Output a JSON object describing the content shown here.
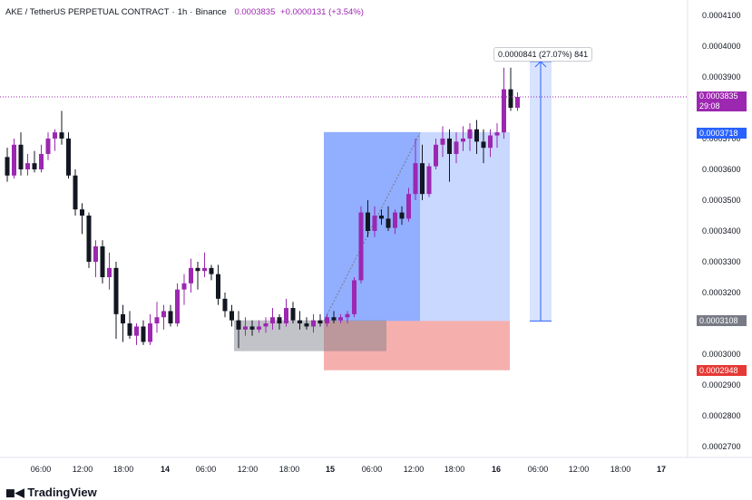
{
  "header": {
    "symbol": "AKE / TetherUS PERPETUAL CONTRACT",
    "interval": "1h",
    "exchange": "Binance",
    "last_price": "0.0003835",
    "change": "+0.0000131 (+3.54%)"
  },
  "price_axis": {
    "ticks": [
      "0.0004100",
      "0.0004000",
      "0.0003900",
      "0.0003800",
      "0.0003700",
      "0.0003600",
      "0.0003500",
      "0.0003400",
      "0.0003300",
      "0.0003200",
      "0.0003100",
      "0.0003000",
      "0.0002900",
      "0.0002800",
      "0.0002700"
    ]
  },
  "badges": {
    "last_price": "0.0003835",
    "countdown": "29:08",
    "take_profit": "0.0003718",
    "entry": "0.0003108",
    "stop_loss": "0.0002948",
    "last_color": "#9c27b0",
    "tp_color": "#2962ff",
    "entry_color": "#787b86",
    "sl_color": "#e53935"
  },
  "measure": {
    "label": "0.0000841 (27.07%) 841"
  },
  "time_axis": {
    "labels": [
      "06:00",
      "12:00",
      "18:00",
      "14",
      "06:00",
      "12:00",
      "18:00",
      "15",
      "06:00",
      "12:00",
      "18:00",
      "16",
      "06:00",
      "12:00",
      "18:00",
      "17"
    ]
  },
  "footer": {
    "logo": "TradingView"
  },
  "chart_data": {
    "type": "candlestick",
    "title": "AKE / TetherUS PERPETUAL CONTRACT · 1h · Binance",
    "y_range": [
      0.0002665,
      0.0004135
    ],
    "up_color": "#9c27b0",
    "down_color": "#131722",
    "candles": [
      {
        "o": 0.000364,
        "h": 0.000367,
        "l": 0.000356,
        "c": 0.000358
      },
      {
        "o": 0.000358,
        "h": 0.00037,
        "l": 0.000357,
        "c": 0.000368
      },
      {
        "o": 0.000368,
        "h": 0.000372,
        "l": 0.000358,
        "c": 0.00036
      },
      {
        "o": 0.00036,
        "h": 0.000365,
        "l": 0.000358,
        "c": 0.000362
      },
      {
        "o": 0.000362,
        "h": 0.000366,
        "l": 0.000359,
        "c": 0.00036
      },
      {
        "o": 0.00036,
        "h": 0.000368,
        "l": 0.000359,
        "c": 0.000365
      },
      {
        "o": 0.000365,
        "h": 0.000372,
        "l": 0.000363,
        "c": 0.00037
      },
      {
        "o": 0.00037,
        "h": 0.000373,
        "l": 0.000366,
        "c": 0.000372
      },
      {
        "o": 0.000372,
        "h": 0.000379,
        "l": 0.000368,
        "c": 0.00037
      },
      {
        "o": 0.00037,
        "h": 0.000372,
        "l": 0.000357,
        "c": 0.000358
      },
      {
        "o": 0.000358,
        "h": 0.00036,
        "l": 0.000345,
        "c": 0.000347
      },
      {
        "o": 0.000347,
        "h": 0.000349,
        "l": 0.000339,
        "c": 0.000345
      },
      {
        "o": 0.000345,
        "h": 0.000346,
        "l": 0.000328,
        "c": 0.00033
      },
      {
        "o": 0.00033,
        "h": 0.000337,
        "l": 0.000325,
        "c": 0.000335
      },
      {
        "o": 0.000335,
        "h": 0.000337,
        "l": 0.000323,
        "c": 0.000325
      },
      {
        "o": 0.000325,
        "h": 0.000333,
        "l": 0.000321,
        "c": 0.000328
      },
      {
        "o": 0.000328,
        "h": 0.00033,
        "l": 0.000305,
        "c": 0.000313
      },
      {
        "o": 0.000313,
        "h": 0.000316,
        "l": 0.000304,
        "c": 0.00031
      },
      {
        "o": 0.00031,
        "h": 0.000314,
        "l": 0.000305,
        "c": 0.000306
      },
      {
        "o": 0.000306,
        "h": 0.00031,
        "l": 0.000303,
        "c": 0.000309
      },
      {
        "o": 0.000309,
        "h": 0.000311,
        "l": 0.000303,
        "c": 0.000304
      },
      {
        "o": 0.000304,
        "h": 0.000313,
        "l": 0.000303,
        "c": 0.00031
      },
      {
        "o": 0.00031,
        "h": 0.000317,
        "l": 0.000307,
        "c": 0.000312
      },
      {
        "o": 0.000312,
        "h": 0.000316,
        "l": 0.000308,
        "c": 0.000314
      },
      {
        "o": 0.000314,
        "h": 0.000316,
        "l": 0.000309,
        "c": 0.00031
      },
      {
        "o": 0.00031,
        "h": 0.000323,
        "l": 0.000309,
        "c": 0.000321
      },
      {
        "o": 0.000321,
        "h": 0.000326,
        "l": 0.000316,
        "c": 0.000323
      },
      {
        "o": 0.000323,
        "h": 0.000331,
        "l": 0.00032,
        "c": 0.000328
      },
      {
        "o": 0.000328,
        "h": 0.00033,
        "l": 0.000321,
        "c": 0.000327
      },
      {
        "o": 0.000327,
        "h": 0.000333,
        "l": 0.000325,
        "c": 0.000328
      },
      {
        "o": 0.000328,
        "h": 0.000329,
        "l": 0.000324,
        "c": 0.000326
      },
      {
        "o": 0.000326,
        "h": 0.000329,
        "l": 0.000316,
        "c": 0.000318
      },
      {
        "o": 0.000318,
        "h": 0.00032,
        "l": 0.000312,
        "c": 0.000314
      },
      {
        "o": 0.000314,
        "h": 0.000316,
        "l": 0.000309,
        "c": 0.000311
      },
      {
        "o": 0.000311,
        "h": 0.000314,
        "l": 0.000302,
        "c": 0.000308
      },
      {
        "o": 0.000308,
        "h": 0.000312,
        "l": 0.000306,
        "c": 0.000309
      },
      {
        "o": 0.000309,
        "h": 0.000311,
        "l": 0.000306,
        "c": 0.000308
      },
      {
        "o": 0.000308,
        "h": 0.000311,
        "l": 0.000307,
        "c": 0.000309
      },
      {
        "o": 0.000309,
        "h": 0.000312,
        "l": 0.000307,
        "c": 0.00031
      },
      {
        "o": 0.00031,
        "h": 0.000315,
        "l": 0.000308,
        "c": 0.000312
      },
      {
        "o": 0.000312,
        "h": 0.000313,
        "l": 0.000308,
        "c": 0.00031
      },
      {
        "o": 0.00031,
        "h": 0.000318,
        "l": 0.000309,
        "c": 0.000315
      },
      {
        "o": 0.000315,
        "h": 0.000317,
        "l": 0.00031,
        "c": 0.000311
      },
      {
        "o": 0.000311,
        "h": 0.000314,
        "l": 0.000308,
        "c": 0.00031
      },
      {
        "o": 0.00031,
        "h": 0.000312,
        "l": 0.000308,
        "c": 0.000309
      },
      {
        "o": 0.000309,
        "h": 0.000313,
        "l": 0.000307,
        "c": 0.000311
      },
      {
        "o": 0.000311,
        "h": 0.000313,
        "l": 0.000309,
        "c": 0.00031
      },
      {
        "o": 0.00031,
        "h": 0.000313,
        "l": 0.000309,
        "c": 0.000312
      },
      {
        "o": 0.000312,
        "h": 0.000314,
        "l": 0.00031,
        "c": 0.000311
      },
      {
        "o": 0.000311,
        "h": 0.000313,
        "l": 0.00031,
        "c": 0.000312
      },
      {
        "o": 0.000312,
        "h": 0.000314,
        "l": 0.00031,
        "c": 0.000313
      },
      {
        "o": 0.000313,
        "h": 0.000325,
        "l": 0.000312,
        "c": 0.000324
      },
      {
        "o": 0.000324,
        "h": 0.000348,
        "l": 0.000323,
        "c": 0.000346
      },
      {
        "o": 0.000346,
        "h": 0.00035,
        "l": 0.000338,
        "c": 0.00034
      },
      {
        "o": 0.00034,
        "h": 0.000348,
        "l": 0.000338,
        "c": 0.000345
      },
      {
        "o": 0.000345,
        "h": 0.000347,
        "l": 0.000342,
        "c": 0.000344
      },
      {
        "o": 0.000344,
        "h": 0.000348,
        "l": 0.00034,
        "c": 0.000341
      },
      {
        "o": 0.000341,
        "h": 0.000347,
        "l": 0.000339,
        "c": 0.000346
      },
      {
        "o": 0.000346,
        "h": 0.000348,
        "l": 0.000342,
        "c": 0.000344
      },
      {
        "o": 0.000344,
        "h": 0.000354,
        "l": 0.000343,
        "c": 0.000352
      },
      {
        "o": 0.000352,
        "h": 0.00037,
        "l": 0.00035,
        "c": 0.000362
      },
      {
        "o": 0.000362,
        "h": 0.000368,
        "l": 0.00035,
        "c": 0.000352
      },
      {
        "o": 0.000352,
        "h": 0.000362,
        "l": 0.000351,
        "c": 0.000361
      },
      {
        "o": 0.000361,
        "h": 0.00037,
        "l": 0.00036,
        "c": 0.000368
      },
      {
        "o": 0.000368,
        "h": 0.000374,
        "l": 0.000364,
        "c": 0.00037
      },
      {
        "o": 0.00037,
        "h": 0.000373,
        "l": 0.000356,
        "c": 0.000365
      },
      {
        "o": 0.000365,
        "h": 0.000372,
        "l": 0.000362,
        "c": 0.000369
      },
      {
        "o": 0.000369,
        "h": 0.000374,
        "l": 0.000366,
        "c": 0.00037
      },
      {
        "o": 0.00037,
        "h": 0.000375,
        "l": 0.000366,
        "c": 0.000373
      },
      {
        "o": 0.000373,
        "h": 0.000376,
        "l": 0.000365,
        "c": 0.000369
      },
      {
        "o": 0.000369,
        "h": 0.000373,
        "l": 0.000362,
        "c": 0.000367
      },
      {
        "o": 0.000367,
        "h": 0.000373,
        "l": 0.000364,
        "c": 0.000371
      },
      {
        "o": 0.000371,
        "h": 0.000375,
        "l": 0.000367,
        "c": 0.000372
      },
      {
        "o": 0.000372,
        "h": 0.000393,
        "l": 0.00037,
        "c": 0.000386
      },
      {
        "o": 0.000386,
        "h": 0.000393,
        "l": 0.000379,
        "c": 0.00038
      },
      {
        "o": 0.00038,
        "h": 0.000385,
        "l": 0.000379,
        "c": 0.0003835
      }
    ]
  },
  "position": {
    "tp_price": 0.0003718,
    "entry_price": 0.0003108,
    "sl_price": 0.0002948,
    "measure_low": 0.0003108,
    "measure_high": 0.000395,
    "range_low": 0.000301,
    "range_high": 0.000311
  }
}
